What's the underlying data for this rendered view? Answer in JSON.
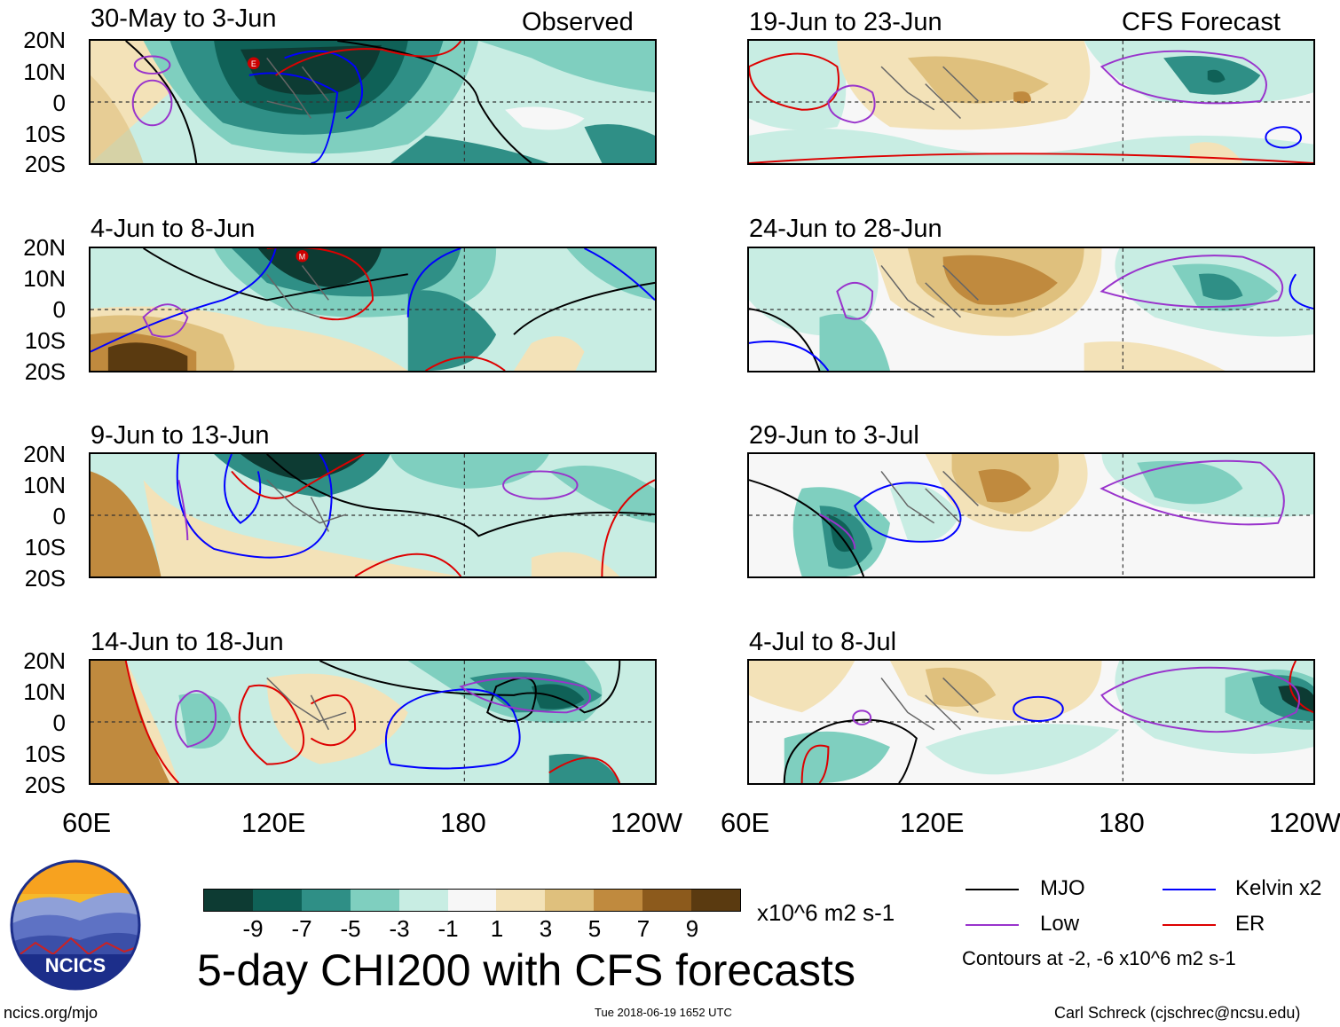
{
  "header_observed": "Observed",
  "header_forecast": "CFS Forecast",
  "lat_labels": [
    "20N",
    "10N",
    "0",
    "10S",
    "20S"
  ],
  "lon_labels": [
    "60E",
    "120E",
    "180",
    "120W"
  ],
  "panels": [
    {
      "title": "30-May to 3-Jun",
      "group": "observed"
    },
    {
      "title": "4-Jun to 8-Jun",
      "group": "observed"
    },
    {
      "title": "9-Jun to 13-Jun",
      "group": "observed"
    },
    {
      "title": "14-Jun to 18-Jun",
      "group": "observed"
    },
    {
      "title": "19-Jun to 23-Jun",
      "group": "forecast"
    },
    {
      "title": "24-Jun to 28-Jun",
      "group": "forecast"
    },
    {
      "title": "29-Jun to 3-Jul",
      "group": "forecast"
    },
    {
      "title": "4-Jul to 8-Jul",
      "group": "forecast"
    }
  ],
  "markers": {
    "event_e": "E",
    "event_m": "M"
  },
  "colorbar": {
    "ticks": [
      "-9",
      "-7",
      "-5",
      "-3",
      "-1",
      "1",
      "3",
      "5",
      "7",
      "9"
    ],
    "colors": [
      "#0d3b33",
      "#0f6157",
      "#2f8f86",
      "#7fcfbf",
      "#c8ede3",
      "#f7f7f7",
      "#f3e2b8",
      "#dfc07d",
      "#c08a3e",
      "#8c5a1c",
      "#5a3a10"
    ],
    "units": "x10^6 m2 s-1"
  },
  "title": "5-day CHI200 with CFS forecasts",
  "legend": {
    "mjo": "MJO",
    "kelvin": "Kelvin x2",
    "low": "Low",
    "er": "ER",
    "contours_note": "Contours at -2, -6 x10^6 m2 s-1",
    "colors": {
      "mjo": "#000000",
      "kelvin": "#0000ff",
      "low": "#9933cc",
      "er": "#dd0000"
    }
  },
  "logo_text": "NCICS",
  "footer": {
    "url": "ncics.org/mjo",
    "timestamp": "Tue 2018-06-19 1652 UTC",
    "author": "Carl Schreck (cjschrec@ncsu.edu)"
  }
}
